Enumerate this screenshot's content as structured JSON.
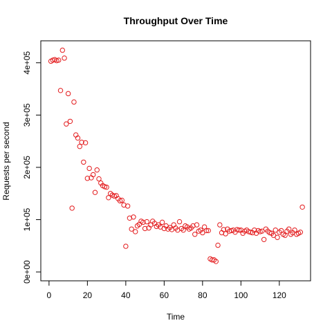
{
  "chart_data": {
    "type": "scatter",
    "title": "Throughput Over Time",
    "xlabel": "Time",
    "ylabel": "Requests per second",
    "xlim": [
      -4.28,
      136.28
    ],
    "ylim": [
      -17000,
      442000
    ],
    "x_ticks": [
      0,
      20,
      40,
      60,
      80,
      100,
      120
    ],
    "y_ticks": [
      0,
      100000,
      200000,
      300000,
      400000
    ],
    "x_tick_labels": [
      "0",
      "20",
      "40",
      "60",
      "80",
      "100",
      "120"
    ],
    "y_tick_labels": [
      "0e+00",
      "1e+05",
      "2e+05",
      "3e+05",
      "4e+05"
    ],
    "grid": false,
    "legend": "none",
    "point_color": "#e31a1c",
    "x": [
      1,
      2,
      3,
      4,
      5,
      6,
      7,
      8,
      9,
      10,
      11,
      12,
      13,
      14,
      15,
      16,
      17,
      18,
      19,
      20,
      21,
      22,
      23,
      24,
      25,
      26,
      27,
      28,
      29,
      30,
      31,
      32,
      33,
      34,
      35,
      36,
      37,
      38,
      39,
      40,
      41,
      42,
      43,
      44,
      45,
      46,
      47,
      48,
      49,
      50,
      51,
      52,
      53,
      54,
      55,
      56,
      57,
      58,
      59,
      60,
      61,
      62,
      63,
      64,
      65,
      66,
      67,
      68,
      69,
      70,
      71,
      72,
      73,
      74,
      75,
      76,
      77,
      78,
      79,
      80,
      81,
      82,
      83,
      84,
      85,
      86,
      87,
      88,
      89,
      90,
      91,
      92,
      93,
      94,
      95,
      96,
      97,
      98,
      99,
      100,
      101,
      102,
      103,
      104,
      105,
      106,
      107,
      108,
      109,
      110,
      111,
      112,
      113,
      114,
      115,
      116,
      117,
      118,
      119,
      120,
      121,
      122,
      123,
      124,
      125,
      126,
      127,
      128,
      129,
      130,
      131,
      132
    ],
    "y": [
      403000,
      405000,
      406000,
      404000,
      405000,
      347000,
      424000,
      409000,
      283000,
      341000,
      288000,
      122000,
      325000,
      262000,
      256000,
      240000,
      248000,
      210000,
      247000,
      179000,
      198000,
      180000,
      186000,
      152000,
      195000,
      178000,
      170000,
      165000,
      163000,
      162000,
      142000,
      150000,
      147000,
      145000,
      146000,
      140000,
      136000,
      137000,
      128000,
      49000,
      126000,
      103000,
      82000,
      105000,
      77000,
      88000,
      91000,
      97000,
      95000,
      83000,
      96000,
      84000,
      90000,
      97000,
      93000,
      87000,
      90000,
      86000,
      95000,
      83000,
      88000,
      82000,
      85000,
      81000,
      90000,
      84000,
      80000,
      96000,
      83000,
      80000,
      88000,
      86000,
      82000,
      84000,
      88000,
      72000,
      90000,
      78000,
      80000,
      75000,
      86000,
      79000,
      79000,
      25000,
      23000,
      23000,
      20000,
      51000,
      90000,
      75000,
      81000,
      73000,
      82000,
      78000,
      79000,
      80000,
      76000,
      81000,
      80000,
      80000,
      74000,
      78000,
      80000,
      77000,
      76000,
      75000,
      80000,
      74000,
      79000,
      77000,
      78000,
      62000,
      82000,
      78000,
      75000,
      74000,
      70000,
      80000,
      66000,
      76000,
      79000,
      72000,
      70000,
      78000,
      82000,
      72000,
      75000,
      80000,
      72000,
      74000,
      76000,
      124000
    ]
  }
}
